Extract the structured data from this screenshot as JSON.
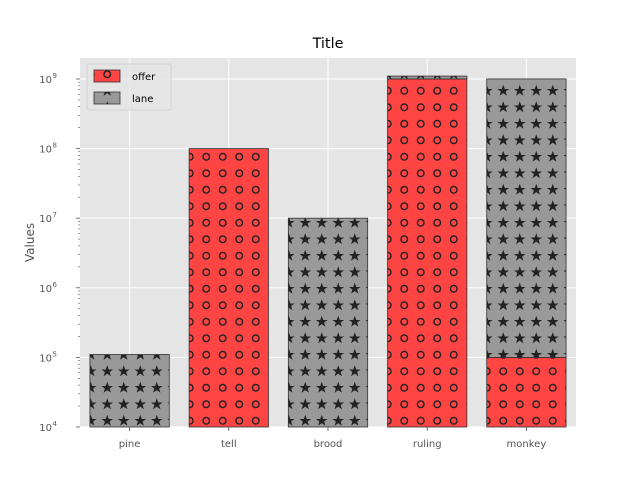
{
  "chart_data": {
    "type": "bar",
    "stacked": true,
    "title": "Title",
    "xlabel": "",
    "ylabel": "Values",
    "yscale": "log",
    "ylim": [
      10000,
      2000000000
    ],
    "grid": true,
    "legend_position": "top-left",
    "categories": [
      "pine",
      "tell",
      "brood",
      "ruling",
      "monkey"
    ],
    "series": [
      {
        "name": "offer",
        "color": "#ff4444",
        "hatch": "circles",
        "values": [
          0,
          100000000,
          0,
          1000000000,
          100000
        ]
      },
      {
        "name": "lane",
        "color": "#999999",
        "hatch": "stars",
        "values": [
          110000,
          0,
          10000000,
          100000000,
          1000000000
        ]
      }
    ],
    "yticks": [
      {
        "value": 10000,
        "base": "10",
        "exp": "4"
      },
      {
        "value": 100000,
        "base": "10",
        "exp": "5"
      },
      {
        "value": 1000000,
        "base": "10",
        "exp": "6"
      },
      {
        "value": 10000000,
        "base": "10",
        "exp": "7"
      },
      {
        "value": 100000000,
        "base": "10",
        "exp": "8"
      },
      {
        "value": 1000000000,
        "base": "10",
        "exp": "9"
      }
    ]
  }
}
